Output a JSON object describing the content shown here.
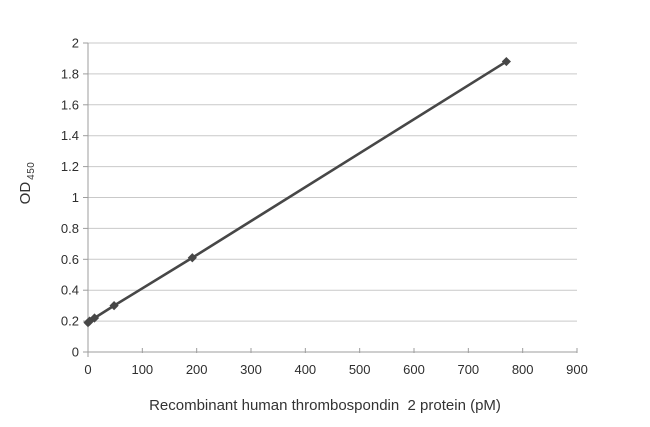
{
  "chart_data": {
    "type": "line",
    "title": "",
    "xlabel": "Recombinant human thrombospondin  2 protein (pM)",
    "ylabel": "OD",
    "ylabel_subscript": "450",
    "xlim": [
      0,
      900
    ],
    "ylim": [
      0,
      2
    ],
    "x_ticks": [
      0,
      100,
      200,
      300,
      400,
      500,
      600,
      700,
      800,
      900
    ],
    "y_ticks": [
      0,
      0.2,
      0.4,
      0.6,
      0.8,
      1,
      1.2,
      1.4,
      1.6,
      1.8,
      2
    ],
    "grid": "horizontal-only",
    "legend_position": "none",
    "marker": "diamond",
    "series": [
      {
        "x": [
          0,
          3,
          12,
          48,
          192,
          770
        ],
        "y": [
          0.19,
          0.2,
          0.22,
          0.3,
          0.61,
          1.88
        ]
      }
    ],
    "colors": {
      "series": "#474747",
      "grid": "#c9c9c9",
      "axis": "#9d9d9d",
      "tick_text": "#2e2e2e",
      "title_text": "#333333",
      "background": "#ffffff"
    }
  }
}
